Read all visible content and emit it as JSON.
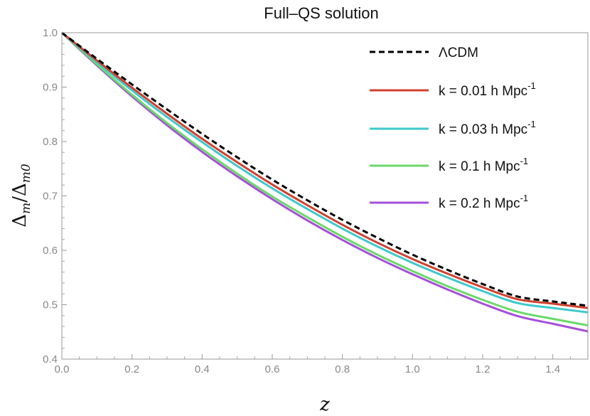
{
  "chart_data": {
    "type": "line",
    "title": "Full–QS solution",
    "xlabel": "z",
    "ylabel": "Δm/Δm0",
    "ylabel_parts": {
      "main1": "Δ",
      "sub1": "m",
      "slash": "/",
      "main2": "Δ",
      "sub2": "m0"
    },
    "xlim": [
      0,
      1.5
    ],
    "ylim": [
      0.4,
      1.0
    ],
    "xticks": [
      "0.0",
      "0.2",
      "0.4",
      "0.6",
      "0.8",
      "1.0",
      "1.2",
      "1.4"
    ],
    "yticks": [
      "0.4",
      "0.5",
      "0.6",
      "0.7",
      "0.8",
      "0.9",
      "1.0"
    ],
    "grid": false,
    "legend_position": "top-right",
    "legend_superscript": "-1",
    "x": [
      0,
      0.1,
      0.2,
      0.3,
      0.4,
      0.5,
      0.6,
      0.7,
      0.8,
      0.9,
      1.0,
      1.1,
      1.2,
      1.3,
      1.4,
      1.5
    ],
    "series": [
      {
        "name": "ΛCDM",
        "legend_text": "ΛCDM",
        "color": "#000000",
        "dashed": true,
        "values": [
          1.0,
          0.952,
          0.905,
          0.859,
          0.814,
          0.771,
          0.73,
          0.692,
          0.656,
          0.623,
          0.592,
          0.564,
          0.538,
          0.515,
          0.506,
          0.498
        ]
      },
      {
        "name": "k = 0.01 h Mpc^-1",
        "legend_text": "k = 0.01 h Mpc",
        "color": "#d0402e",
        "dashed": false,
        "values": [
          1.0,
          0.949,
          0.899,
          0.851,
          0.805,
          0.762,
          0.721,
          0.683,
          0.647,
          0.614,
          0.584,
          0.557,
          0.532,
          0.51,
          0.502,
          0.494
        ]
      },
      {
        "name": "k = 0.03 h Mpc^-1",
        "legend_text": "k = 0.03 h Mpc",
        "color": "#3ec8cc",
        "dashed": false,
        "values": [
          1.0,
          0.946,
          0.894,
          0.845,
          0.799,
          0.755,
          0.714,
          0.676,
          0.64,
          0.607,
          0.577,
          0.55,
          0.525,
          0.503,
          0.494,
          0.486
        ]
      },
      {
        "name": "k = 0.1 h Mpc^-1",
        "legend_text": "k = 0.1 h Mpc",
        "color": "#6ad96a",
        "dashed": false,
        "values": [
          1.0,
          0.942,
          0.886,
          0.834,
          0.786,
          0.741,
          0.699,
          0.661,
          0.625,
          0.592,
          0.562,
          0.534,
          0.509,
          0.487,
          0.474,
          0.462
        ]
      },
      {
        "name": "k = 0.2 h Mpc^-1",
        "legend_text": "k = 0.2 h Mpc",
        "color": "#a64fd9",
        "dashed": false,
        "values": [
          1.0,
          0.94,
          0.883,
          0.83,
          0.781,
          0.736,
          0.694,
          0.655,
          0.619,
          0.586,
          0.556,
          0.528,
          0.502,
          0.479,
          0.465,
          0.451
        ]
      }
    ]
  }
}
